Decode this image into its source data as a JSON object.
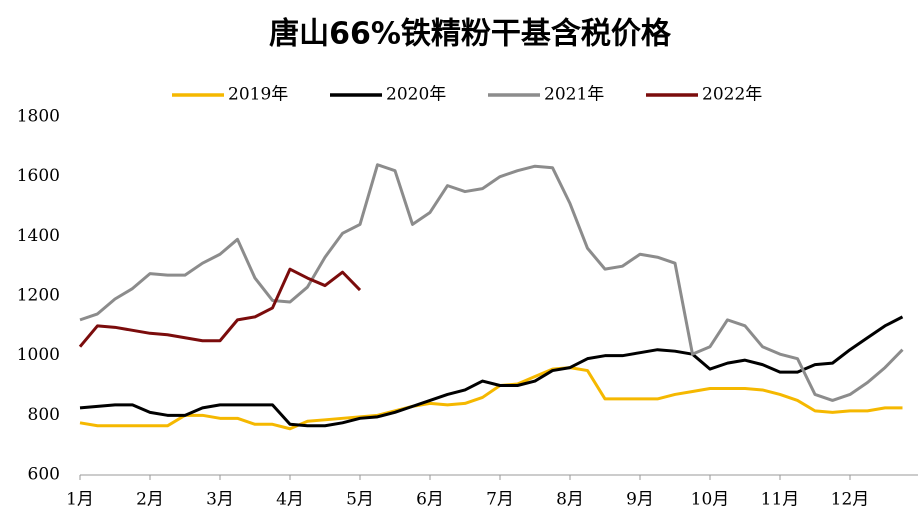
{
  "chart_data": {
    "type": "line",
    "title": "唐山66%铁精粉干基含税价格",
    "categories": [
      "1月",
      null,
      null,
      null,
      "2月",
      null,
      null,
      null,
      "3月",
      null,
      null,
      null,
      "4月",
      null,
      null,
      null,
      "5月",
      null,
      null,
      null,
      "6月",
      null,
      null,
      null,
      "7月",
      null,
      null,
      null,
      "8月",
      null,
      null,
      null,
      "9月",
      null,
      null,
      null,
      "10月",
      null,
      null,
      null,
      "11月",
      null,
      null,
      null,
      "12月",
      null,
      null,
      null
    ],
    "ylim": [
      600,
      1800
    ],
    "yticks": [
      600,
      800,
      1000,
      1200,
      1400,
      1600,
      1800
    ],
    "grid": false,
    "legend": "top",
    "series": [
      {
        "name": "2019年",
        "color": "#f5b800",
        "values": [
          775,
          765,
          765,
          765,
          765,
          765,
          800,
          800,
          790,
          790,
          770,
          770,
          755,
          780,
          785,
          790,
          795,
          800,
          815,
          830,
          840,
          835,
          840,
          860,
          900,
          905,
          930,
          955,
          960,
          950,
          855,
          855,
          855,
          855,
          870,
          880,
          890,
          890,
          890,
          885,
          870,
          850,
          815,
          810,
          815,
          815,
          825,
          825
        ]
      },
      {
        "name": "2020年",
        "color": "#000000",
        "values": [
          825,
          830,
          835,
          835,
          810,
          800,
          800,
          825,
          835,
          835,
          835,
          835,
          770,
          765,
          765,
          775,
          790,
          795,
          810,
          830,
          850,
          870,
          885,
          915,
          900,
          900,
          915,
          950,
          960,
          990,
          1000,
          1000,
          1010,
          1020,
          1015,
          1005,
          955,
          975,
          985,
          970,
          945,
          945,
          970,
          975,
          1020,
          1060,
          1100,
          1130
        ]
      },
      {
        "name": "2021年",
        "color": "#8c8c8c",
        "values": [
          1120,
          1140,
          1190,
          1225,
          1275,
          1270,
          1270,
          1310,
          1340,
          1390,
          1260,
          1185,
          1180,
          1230,
          1330,
          1410,
          1440,
          1640,
          1620,
          1440,
          1480,
          1570,
          1550,
          1560,
          1600,
          1620,
          1635,
          1630,
          1510,
          1360,
          1290,
          1300,
          1340,
          1330,
          1310,
          1005,
          1030,
          1120,
          1100,
          1030,
          1005,
          990,
          870,
          850,
          870,
          910,
          960,
          1020
        ]
      },
      {
        "name": "2022年",
        "color": "#7b0c0c",
        "values": [
          1030,
          1100,
          1095,
          1085,
          1075,
          1070,
          1060,
          1050,
          1050,
          1120,
          1130,
          1160,
          1290,
          1260,
          1235,
          1280,
          1220,
          null,
          null,
          null,
          null,
          null,
          null,
          null,
          null,
          null,
          null,
          null,
          null,
          null,
          null,
          null,
          null,
          null,
          null,
          null,
          null,
          null,
          null,
          null,
          null,
          null,
          null,
          null,
          null,
          null,
          null,
          null
        ]
      }
    ]
  }
}
